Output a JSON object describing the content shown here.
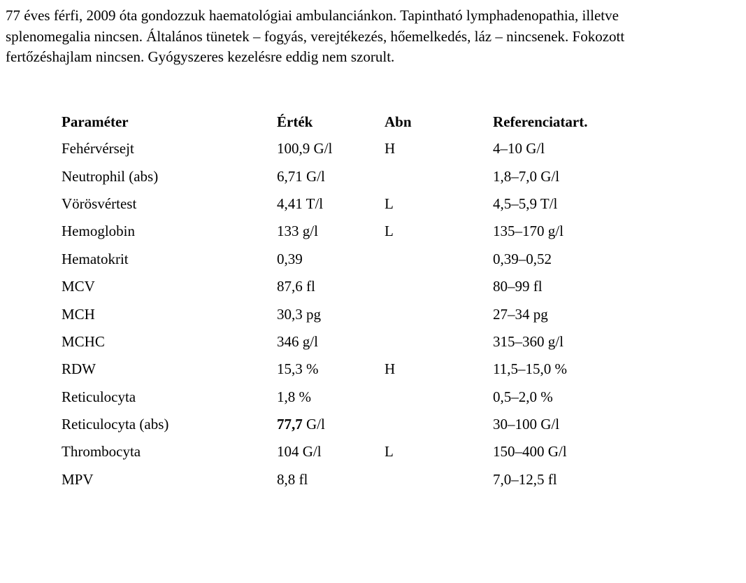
{
  "intro_text": "77 éves férfi, 2009 óta gondozzuk haematológiai ambulanciánkon. Tapintható lymphadenopathia, illetve splenomegalia nincsen. Általános tünetek – fogyás, verejtékezés, hőemelkedés, láz – nincsenek. Fokozott fertőzéshajlam nincsen. Gyógyszeres kezelésre eddig nem szorult.",
  "table": {
    "headers": {
      "param": "Paraméter",
      "value": "Érték",
      "abn": "Abn",
      "ref": "Referenciatart."
    },
    "rows": [
      {
        "param": "Fehérvérsejt",
        "value_num": "100,9",
        "value_unit": "G/l",
        "abn": "H",
        "ref": "4–10 G/l"
      },
      {
        "param": "Neutrophil (abs)",
        "value_num": "6,71",
        "value_unit": "G/l",
        "abn": "",
        "ref": "1,8–7,0 G/l"
      },
      {
        "param": "Vörösvértest",
        "value_num": "4,41",
        "value_unit": "T/l",
        "abn": "L",
        "ref": "4,5–5,9 T/l"
      },
      {
        "param": "Hemoglobin",
        "value_num": "133",
        "value_unit": "g/l",
        "abn": "L",
        "ref": "135–170 g/l"
      },
      {
        "param": "Hematokrit",
        "value_num": "0,39",
        "value_unit": "",
        "abn": "",
        "ref": "0,39–0,52"
      },
      {
        "param": "MCV",
        "value_num": "87,6",
        "value_unit": "fl",
        "abn": "",
        "ref": "80–99 fl"
      },
      {
        "param": "MCH",
        "value_num": "30,3",
        "value_unit": "pg",
        "abn": "",
        "ref": "27–34 pg"
      },
      {
        "param": "MCHC",
        "value_num": "346",
        "value_unit": "g/l",
        "abn": "",
        "ref": "315–360 g/l"
      },
      {
        "param": "RDW",
        "value_num": "15,3",
        "value_unit": "%",
        "abn": "H",
        "ref": "11,5–15,0 %"
      },
      {
        "param": "Reticulocyta",
        "value_num": "1,8",
        "value_unit": "%",
        "abn": "",
        "ref": "0,5–2,0 %"
      },
      {
        "param": "Reticulocyta (abs)",
        "value_num": "77,7",
        "value_unit": "G/l",
        "abn": "",
        "ref": "30–100 G/l",
        "value_bold": true
      },
      {
        "param": "Thrombocyta",
        "value_num": "104",
        "value_unit": "G/l",
        "abn": "L",
        "ref": "150–400 G/l"
      },
      {
        "param": "MPV",
        "value_num": "8,8",
        "value_unit": "fl",
        "abn": "",
        "ref": "7,0–12,5 fl"
      }
    ]
  }
}
